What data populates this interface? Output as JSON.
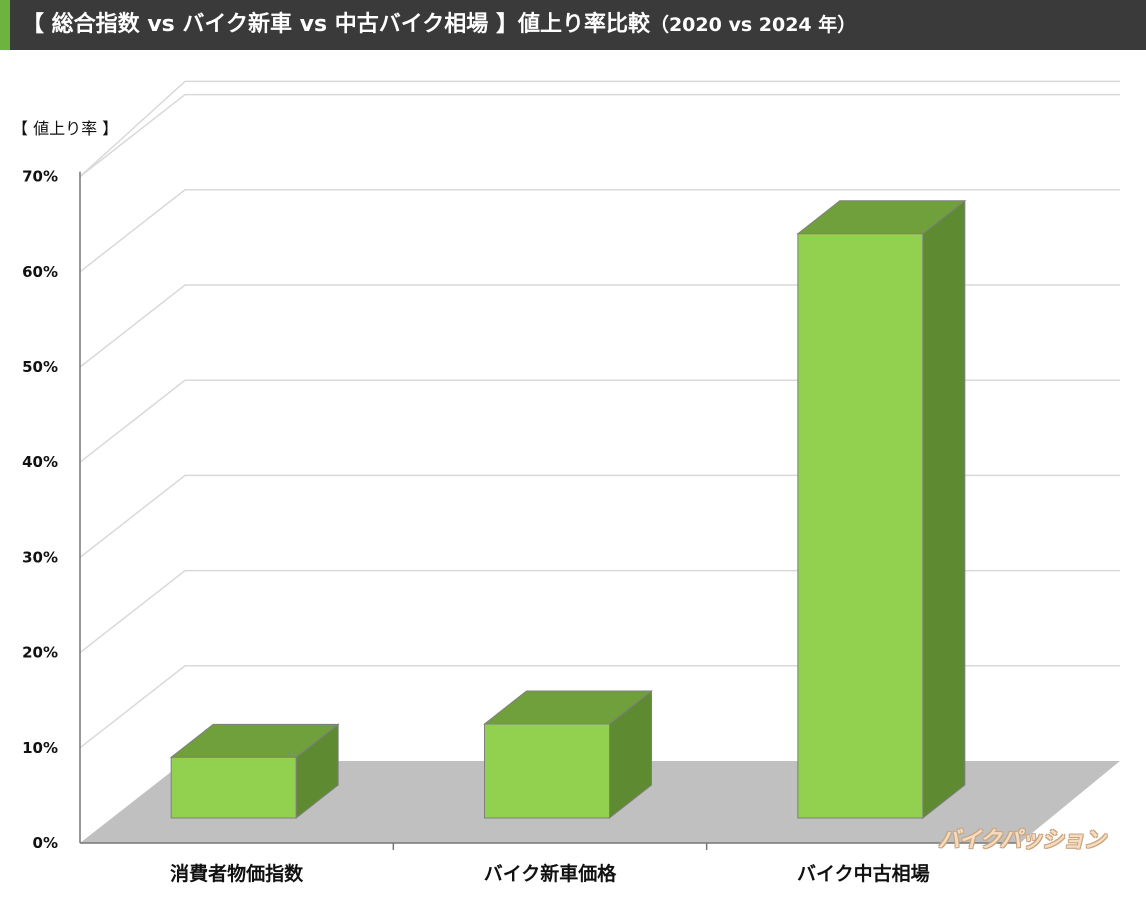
{
  "header": {
    "title": "【 総合指数 vs バイク新車 vs 中古バイク相場 】値上り率比較",
    "title_suffix": "（2020 vs 2024 年）",
    "accent_color": "#6db33f",
    "background_color": "#3a3a3a"
  },
  "chart_data": {
    "type": "bar",
    "ylabel": "【 値上り率 】",
    "categories": [
      "消費者物価指数",
      "バイク新車価格",
      "バイク中古相場"
    ],
    "values": [
      9,
      12.5,
      64
    ],
    "ylim": [
      0,
      70
    ],
    "y_ticks": [
      "0%",
      "10%",
      "20%",
      "30%",
      "40%",
      "50%",
      "60%",
      "70%"
    ],
    "grid": true,
    "style": "3d",
    "colors": {
      "front": "#92d050",
      "top": "#70a03c",
      "side": "#5e8a32",
      "floor": "#c0c0c0"
    }
  },
  "watermark": "バイクパッション"
}
